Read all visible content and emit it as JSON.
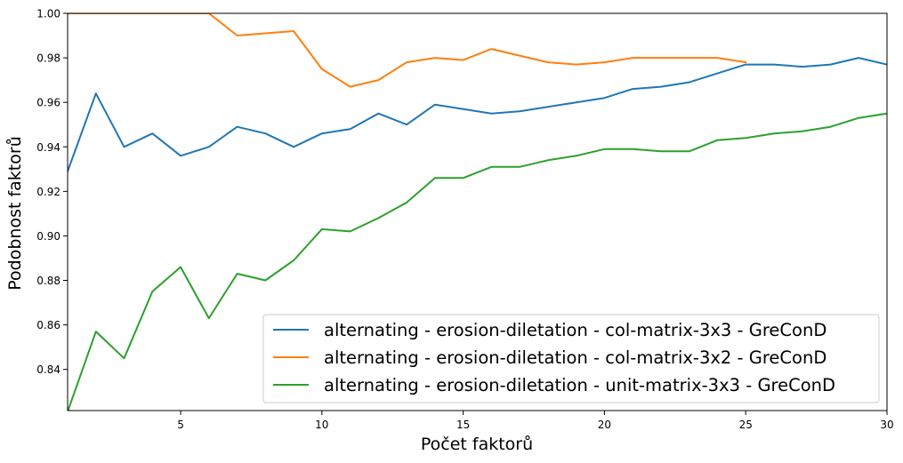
{
  "chart_data": {
    "type": "line",
    "title": "",
    "xlabel": "Počet faktorů",
    "ylabel": "Podobnost faktorů",
    "xlim": [
      1,
      30
    ],
    "ylim": [
      0.8215,
      1.0
    ],
    "xticks": [
      5,
      10,
      15,
      20,
      25,
      30
    ],
    "xtick_labels": [
      "5",
      "10",
      "15",
      "20",
      "25",
      "30"
    ],
    "yticks": [
      0.84,
      0.86,
      0.88,
      0.9,
      0.92,
      0.94,
      0.96,
      0.98,
      1.0
    ],
    "ytick_labels": [
      "0.84",
      "0.86",
      "0.88",
      "0.90",
      "0.92",
      "0.94",
      "0.96",
      "0.98",
      "1.00"
    ],
    "grid": false,
    "legend_position": "lower-right",
    "series": [
      {
        "name": "alternating - erosion-diletation - col-matrix-3x3 - GreConD",
        "color": "#1f77b4",
        "x": [
          1,
          2,
          3,
          4,
          5,
          6,
          7,
          8,
          9,
          10,
          11,
          12,
          13,
          14,
          15,
          16,
          17,
          18,
          19,
          20,
          21,
          22,
          23,
          24,
          25,
          26,
          27,
          28,
          29,
          30
        ],
        "values": [
          0.929,
          0.964,
          0.94,
          0.946,
          0.936,
          0.94,
          0.949,
          0.946,
          0.94,
          0.946,
          0.948,
          0.955,
          0.95,
          0.959,
          0.957,
          0.955,
          0.956,
          0.958,
          0.96,
          0.962,
          0.966,
          0.967,
          0.969,
          0.973,
          0.977,
          0.977,
          0.976,
          0.977,
          0.98,
          0.977
        ]
      },
      {
        "name": "alternating - erosion-diletation - col-matrix-3x2 - GreConD",
        "color": "#ff7f0e",
        "x": [
          1,
          2,
          3,
          4,
          5,
          6,
          7,
          8,
          9,
          10,
          11,
          12,
          13,
          14,
          15,
          16,
          17,
          18,
          19,
          20,
          21,
          22,
          23,
          24,
          25
        ],
        "values": [
          1.0,
          1.0,
          1.0,
          1.0,
          1.0,
          1.0,
          0.99,
          0.991,
          0.992,
          0.975,
          0.967,
          0.97,
          0.978,
          0.98,
          0.979,
          0.984,
          0.981,
          0.978,
          0.977,
          0.978,
          0.98,
          0.98,
          0.98,
          0.98,
          0.978
        ]
      },
      {
        "name": "alternating - erosion-diletation - unit-matrix-3x3 - GreConD",
        "color": "#2ca02c",
        "x": [
          1,
          2,
          3,
          4,
          5,
          6,
          7,
          8,
          9,
          10,
          11,
          12,
          13,
          14,
          15,
          16,
          17,
          18,
          19,
          20,
          21,
          22,
          23,
          24,
          25,
          26,
          27,
          28,
          29,
          30
        ],
        "values": [
          0.821,
          0.857,
          0.845,
          0.875,
          0.886,
          0.863,
          0.883,
          0.88,
          0.889,
          0.903,
          0.902,
          0.908,
          0.915,
          0.926,
          0.926,
          0.931,
          0.931,
          0.934,
          0.936,
          0.939,
          0.939,
          0.938,
          0.938,
          0.943,
          0.944,
          0.946,
          0.947,
          0.949,
          0.953,
          0.955
        ]
      }
    ]
  }
}
